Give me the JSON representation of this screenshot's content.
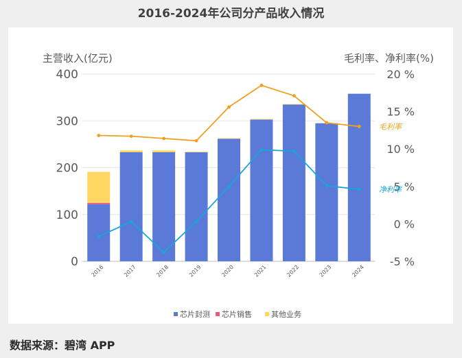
{
  "page": {
    "title": "2016-2024年公司分产品收入情况",
    "source": "数据来源：碧湾 APP"
  },
  "colors": {
    "chip_packaging": "#5b79d6",
    "chip_sales": "#e25d75",
    "other": "#fdd761",
    "gross_margin": "#f0a020",
    "net_margin": "#1aa5da"
  },
  "chart_data": {
    "type": "bar",
    "stacked": true,
    "categories": [
      "2016",
      "2017",
      "2018",
      "2019",
      "2020",
      "2021",
      "2022",
      "2023",
      "2024"
    ],
    "series": [
      {
        "name": "芯片封测",
        "values": [
          122,
          233,
          233,
          233,
          262,
          303,
          335,
          295,
          358
        ]
      },
      {
        "name": "芯片销售",
        "values": [
          3,
          0,
          0,
          0,
          0,
          0,
          0,
          0,
          0
        ]
      },
      {
        "name": "其他业务",
        "values": [
          66,
          4,
          4,
          1,
          1,
          1,
          1,
          0,
          0
        ]
      }
    ],
    "line_series": [
      {
        "name": "毛利率",
        "values": [
          11.8,
          11.7,
          11.4,
          11.1,
          15.6,
          18.5,
          17.1,
          13.5,
          13.0
        ]
      },
      {
        "name": "净利率",
        "values": [
          -1.7,
          0.3,
          -3.8,
          0.3,
          5.0,
          9.9,
          9.7,
          5.1,
          4.6
        ]
      }
    ],
    "ylabel": "主营收入(亿元)",
    "y2label": "毛利率、净利率(%)",
    "ylim": [
      0,
      400
    ],
    "y2lim": [
      -5,
      20
    ],
    "yticks": [
      "0",
      "100",
      "200",
      "300",
      "400"
    ],
    "y2ticks": [
      "-5 %",
      "0 %",
      "5 %",
      "10 %",
      "15 %",
      "20 %"
    ],
    "legend": [
      "芯片封测",
      "芯片销售",
      "其他业务"
    ],
    "legend_position": "bottom",
    "grid": true
  }
}
